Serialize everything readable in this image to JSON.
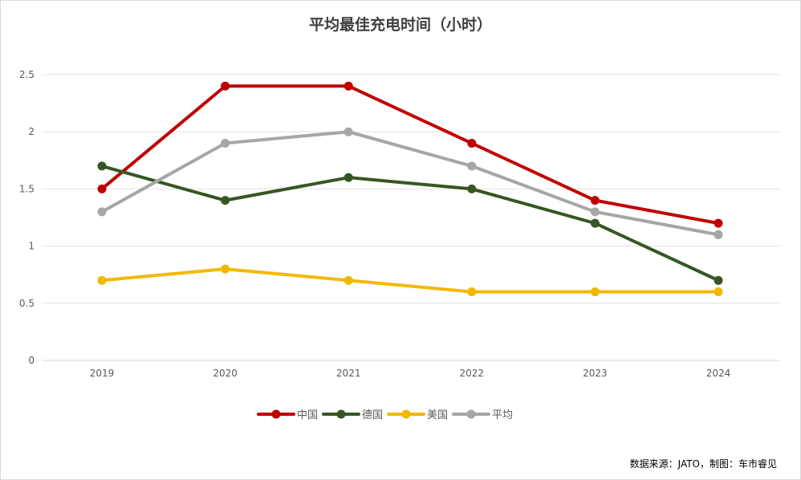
{
  "chart_data": {
    "type": "line",
    "title": "平均最佳充电时间（小时）",
    "xlabel": "",
    "ylabel": "",
    "categories": [
      "2019",
      "2020",
      "2021",
      "2022",
      "2023",
      "2024"
    ],
    "ylim": [
      0,
      2.5
    ],
    "yticks": [
      "0",
      "0.5",
      "1",
      "1.5",
      "2",
      "2.5"
    ],
    "grid": true,
    "legend_position": "bottom",
    "series": [
      {
        "name": "中国",
        "color": "#c00000",
        "values": [
          1.5,
          2.4,
          2.4,
          1.9,
          1.4,
          1.2
        ]
      },
      {
        "name": "德国",
        "color": "#375623",
        "values": [
          1.7,
          1.4,
          1.6,
          1.5,
          1.2,
          0.7
        ]
      },
      {
        "name": "美国",
        "color": "#f2b800",
        "values": [
          0.7,
          0.8,
          0.7,
          0.6,
          0.6,
          0.6
        ]
      },
      {
        "name": "平均",
        "color": "#a6a6a6",
        "values": [
          1.3,
          1.9,
          2.0,
          1.7,
          1.3,
          1.1
        ]
      }
    ],
    "source": "数据来源：JATO，制图：车市睿见"
  }
}
